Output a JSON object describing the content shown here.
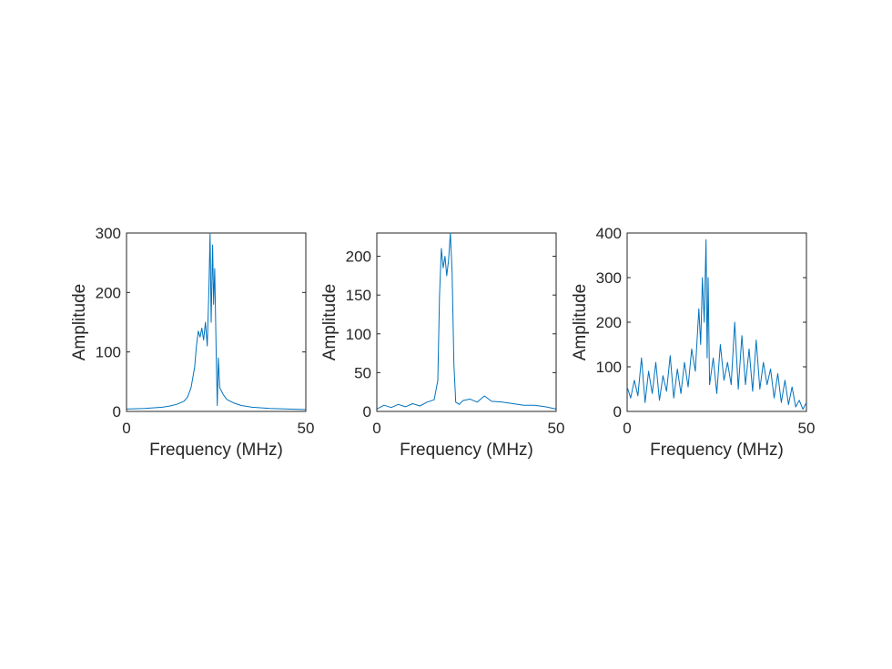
{
  "chart_data": [
    {
      "type": "line",
      "xlabel": "Frequency (MHz)",
      "ylabel": "Amplitude",
      "xlim": [
        0,
        50
      ],
      "ylim": [
        0,
        300
      ],
      "xticks": [
        0,
        50
      ],
      "yticks": [
        0,
        100,
        200,
        300
      ],
      "grid": false,
      "series": [
        {
          "color": "#0072BD",
          "x": [
            0,
            5,
            10,
            12,
            14,
            16,
            17,
            18,
            19,
            19.5,
            20,
            20.5,
            21,
            21.5,
            22,
            22.5,
            23,
            23.3,
            23.6,
            24,
            24.3,
            24.6,
            25,
            25.3,
            25.6,
            26,
            27,
            28,
            30,
            32,
            35,
            40,
            45,
            50
          ],
          "y": [
            4,
            5,
            7,
            9,
            12,
            17,
            24,
            40,
            75,
            110,
            135,
            125,
            140,
            120,
            150,
            110,
            210,
            300,
            150,
            280,
            180,
            240,
            100,
            10,
            90,
            40,
            28,
            20,
            14,
            10,
            7,
            5,
            4,
            3
          ]
        }
      ]
    },
    {
      "type": "line",
      "xlabel": "Frequency (MHz)",
      "ylabel": "Amplitude",
      "xlim": [
        0,
        50
      ],
      "ylim": [
        0,
        230
      ],
      "xticks": [
        0,
        50
      ],
      "yticks": [
        0,
        50,
        100,
        150,
        200
      ],
      "grid": false,
      "series": [
        {
          "color": "#0072BD",
          "x": [
            0,
            2,
            4,
            6,
            8,
            10,
            12,
            14,
            16,
            17,
            17.5,
            18,
            18.5,
            19,
            19.5,
            20,
            20.5,
            21,
            21.5,
            22,
            23,
            24,
            26,
            28,
            30,
            32,
            35,
            38,
            41,
            44,
            47,
            50
          ],
          "y": [
            3,
            8,
            5,
            9,
            6,
            10,
            7,
            12,
            15,
            40,
            150,
            210,
            185,
            200,
            175,
            195,
            230,
            180,
            60,
            12,
            9,
            14,
            16,
            12,
            20,
            13,
            12,
            10,
            8,
            8,
            6,
            3
          ]
        }
      ]
    },
    {
      "type": "line",
      "xlabel": "Frequency (MHz)",
      "ylabel": "Amplitude",
      "xlim": [
        0,
        50
      ],
      "ylim": [
        0,
        400
      ],
      "xticks": [
        0,
        50
      ],
      "yticks": [
        0,
        100,
        200,
        300,
        400
      ],
      "grid": false,
      "series": [
        {
          "color": "#0072BD",
          "x": [
            0,
            1,
            2,
            3,
            4,
            5,
            6,
            7,
            8,
            9,
            10,
            11,
            12,
            13,
            14,
            15,
            16,
            17,
            18,
            19,
            20,
            20.5,
            21,
            21.5,
            22,
            22.3,
            22.6,
            23,
            24,
            25,
            26,
            27,
            28,
            29,
            30,
            31,
            32,
            33,
            34,
            35,
            36,
            37,
            38,
            39,
            40,
            41,
            42,
            43,
            44,
            45,
            46,
            47,
            48,
            49,
            50
          ],
          "y": [
            55,
            30,
            70,
            35,
            120,
            20,
            90,
            40,
            110,
            25,
            80,
            45,
            125,
            30,
            95,
            40,
            110,
            55,
            140,
            90,
            230,
            150,
            300,
            200,
            385,
            120,
            300,
            60,
            120,
            40,
            150,
            70,
            110,
            60,
            200,
            50,
            170,
            60,
            140,
            45,
            160,
            50,
            110,
            60,
            95,
            30,
            85,
            20,
            70,
            15,
            55,
            10,
            25,
            5,
            20
          ]
        }
      ]
    }
  ]
}
